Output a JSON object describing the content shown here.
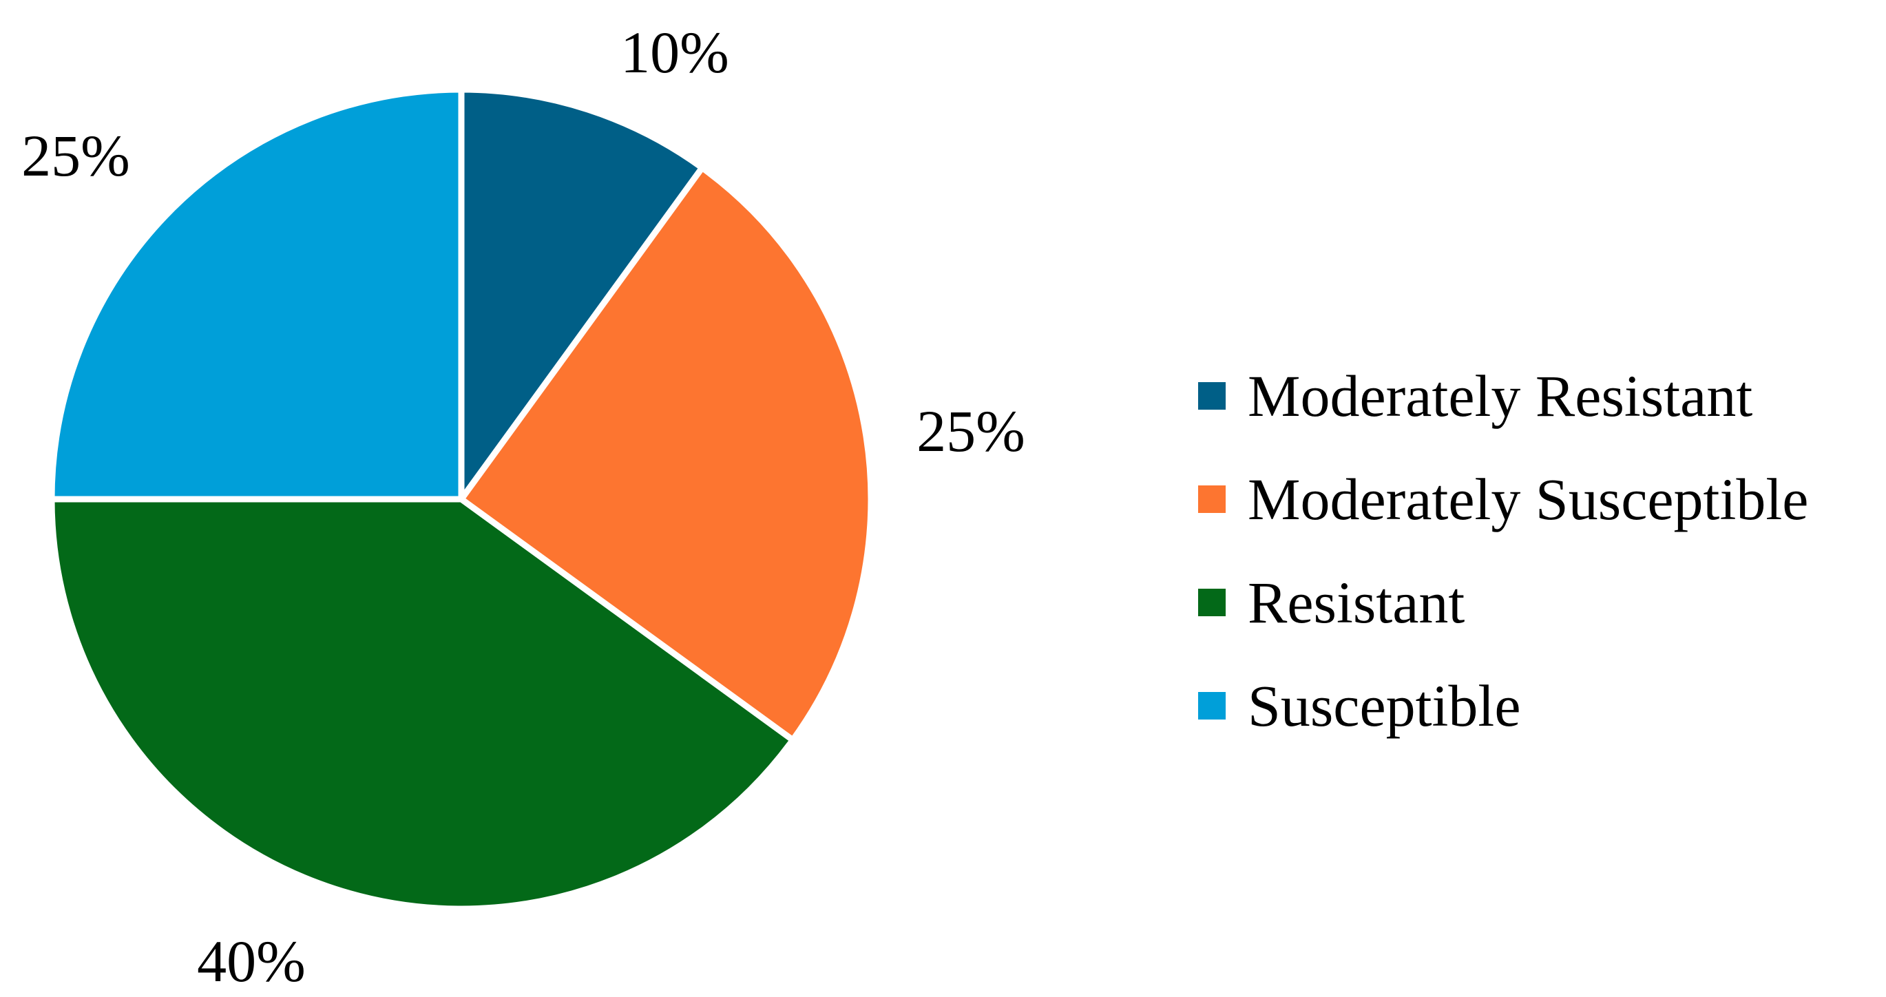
{
  "chart_data": {
    "type": "pie",
    "title": "",
    "start_angle": "12 o'clock, clockwise",
    "slices": [
      {
        "name": "Moderately Resistant",
        "value": 10,
        "label": "10%",
        "color": "#005f87"
      },
      {
        "name": "Moderately Susceptible",
        "value": 25,
        "label": "25%",
        "color": "#fd7530"
      },
      {
        "name": "Resistant",
        "value": 40,
        "label": "40%",
        "color": "#036918"
      },
      {
        "name": "Susceptible",
        "value": 25,
        "label": "25%",
        "color": "#009fd9"
      }
    ],
    "legend": {
      "placement": "right",
      "entries": [
        {
          "label": "Moderately Resistant",
          "color": "#005f87"
        },
        {
          "label": "Moderately Susceptible",
          "color": "#fd7530"
        },
        {
          "label": "Resistant",
          "color": "#036918"
        },
        {
          "label": "Susceptible",
          "color": "#009fd9"
        }
      ]
    }
  }
}
